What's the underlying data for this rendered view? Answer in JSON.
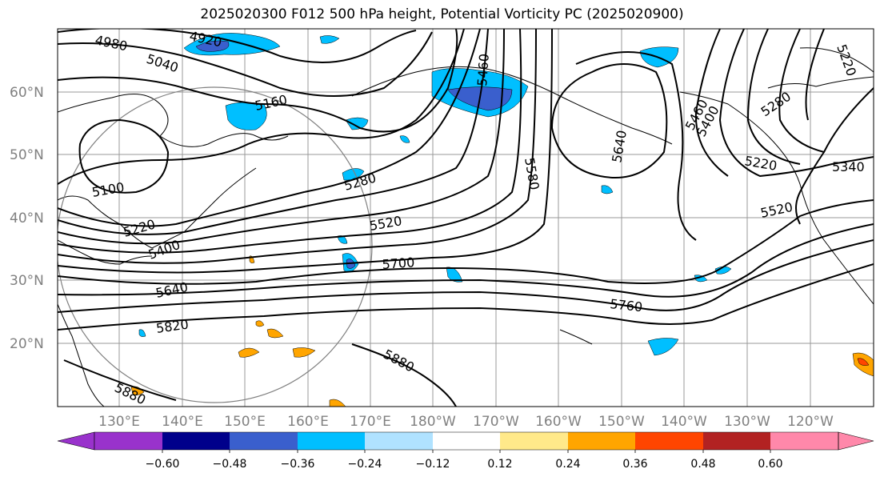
{
  "title": "2025020300 F012 500 hPa height, Potential Vorticity PC (2025020900)",
  "lat_labels": [
    "60°N",
    "50°N",
    "40°N",
    "30°N",
    "20°N"
  ],
  "lon_labels": [
    "130°E",
    "140°E",
    "150°E",
    "160°E",
    "170°E",
    "180°W",
    "170°W",
    "160°W",
    "150°W",
    "140°W",
    "130°W",
    "120°W"
  ],
  "contour_labels": [
    "4980",
    "4920",
    "5040",
    "5160",
    "5100",
    "5220",
    "5400",
    "5280",
    "5520",
    "5640",
    "5700",
    "5820",
    "5760",
    "5880",
    "5880",
    "5580",
    "5640",
    "5460",
    "5400",
    "5280",
    "5220",
    "5340",
    "5520",
    "5460",
    "5220"
  ],
  "colorbar": {
    "ticks": [
      "−0.60",
      "−0.48",
      "−0.36",
      "−0.24",
      "−0.12",
      "0.12",
      "0.24",
      "0.36",
      "0.48",
      "0.60"
    ],
    "colors": [
      "#9932cc",
      "#00008b",
      "#3a5fcd",
      "#00bfff",
      "#b0e2ff",
      "#ffffff",
      "#ffe98a",
      "#ffa500",
      "#ff4500",
      "#b22222",
      "#ff88aa"
    ]
  }
}
